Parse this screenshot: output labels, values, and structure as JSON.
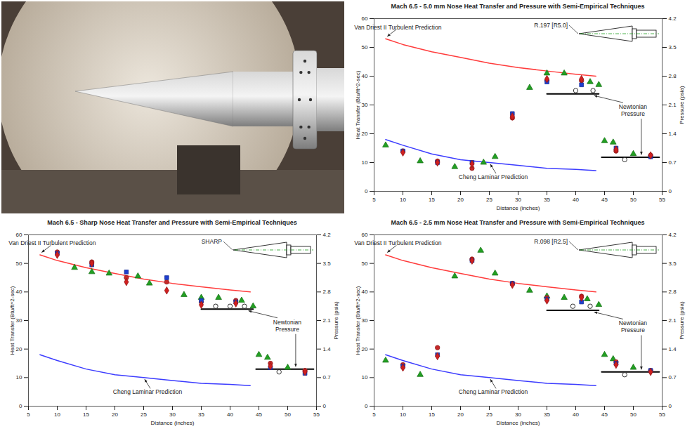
{
  "chart_data": [
    {
      "type": "scatter",
      "title": "Mach 6.5 - 5.0 mm Nose Heat Transfer and Pressure with Semi-Empirical Techniques",
      "nose_label": "R.197 [R5.0]",
      "x_label": "Distance (inches)",
      "y_label": "Heat Transfer (Btu/ft^2-sec)",
      "y2_label": "Pressure (psia)",
      "xlim": [
        5,
        55
      ],
      "xticks": [
        5,
        10,
        15,
        20,
        25,
        30,
        35,
        40,
        45,
        50,
        55
      ],
      "ylim": [
        0,
        60
      ],
      "yticks": [
        0,
        10,
        20,
        30,
        40,
        50,
        60
      ],
      "y2lim": [
        0,
        4.2
      ],
      "y2ticks": [
        0,
        0.7,
        1.4,
        2.1,
        2.8,
        3.5,
        4.2
      ],
      "series": [
        {
          "name": "Van Driest II Turbulent Prediction",
          "type": "line",
          "color": "#ff3c3c",
          "x": [
            7,
            10,
            15,
            20,
            25,
            30,
            35,
            40,
            43.5
          ],
          "values": [
            53,
            51,
            48.5,
            46.5,
            44.5,
            43,
            41.8,
            40.7,
            40
          ]
        },
        {
          "name": "Cheng Laminar Prediction",
          "type": "line",
          "color": "#3c3cff",
          "x": [
            7,
            10,
            15,
            20,
            25,
            30,
            35,
            40,
            43.5
          ],
          "values": [
            18,
            16,
            13,
            11,
            10,
            9,
            8,
            7.6,
            7.2
          ]
        },
        {
          "name": "Newtonian Pressure",
          "type": "line",
          "color": "#000000",
          "axis": "y2",
          "x": [
            35,
            44,
            44.5,
            44.5,
            54.5
          ],
          "values": [
            2.37,
            2.37,
            null,
            0.83,
            0.83
          ]
        },
        {
          "type": "scatter",
          "marker": "triangle",
          "color": "#22a022",
          "x": [
            7,
            13,
            19,
            24,
            26,
            32,
            35,
            38,
            42.5,
            44,
            45,
            46.5,
            50
          ],
          "values": [
            16,
            10.5,
            8.5,
            10,
            12,
            36,
            41,
            41,
            38,
            37,
            17.5,
            17,
            13
          ]
        },
        {
          "type": "scatter",
          "marker": "circle",
          "color": "#c62828",
          "x": [
            10,
            16,
            22,
            29,
            35,
            41,
            47,
            53
          ],
          "values": [
            14,
            10.5,
            8,
            25.5,
            38.5,
            38.5,
            14,
            12.5
          ]
        },
        {
          "type": "scatter",
          "marker": "square",
          "color": "#1f3fd0",
          "x": [
            10,
            16,
            22,
            29,
            35,
            41,
            47,
            53
          ],
          "values": [
            14,
            10,
            10,
            27,
            38,
            37,
            15,
            12
          ]
        },
        {
          "type": "scatter",
          "marker": "diamond",
          "color": "#d01f1f",
          "x": [
            10,
            16,
            22,
            29,
            35,
            41,
            47,
            53
          ],
          "values": [
            13.5,
            10,
            9.5,
            26,
            39,
            39,
            14.5,
            12.5
          ]
        },
        {
          "type": "scatter",
          "marker": "open_circle",
          "color": "#ffffff",
          "axis": "y2",
          "x": [
            40,
            43,
            48.5
          ],
          "values": [
            2.45,
            2.45,
            0.77
          ]
        }
      ]
    },
    {
      "type": "scatter",
      "title": "Mach 6.5 - Sharp Nose Heat Transfer and Pressure with Semi-Empirical Techniques",
      "nose_label": "SHARP",
      "x_label": "Distance (inches)",
      "y_label": "Heat Transfer (Btu/ft^2-sec)",
      "y2_label": "Pressure (psia)",
      "xlim": [
        5,
        55
      ],
      "xticks": [
        5,
        10,
        15,
        20,
        25,
        30,
        35,
        40,
        45,
        50,
        55
      ],
      "ylim": [
        0,
        60
      ],
      "yticks": [
        0,
        10,
        20,
        30,
        40,
        50,
        60
      ],
      "y2lim": [
        0,
        4.2
      ],
      "y2ticks": [
        0,
        0.7,
        1.4,
        2.1,
        2.8,
        3.5,
        4.2
      ],
      "series": [
        {
          "name": "Van Driest II Turbulent Prediction",
          "type": "line",
          "color": "#ff3c3c",
          "x": [
            7,
            10,
            15,
            20,
            25,
            30,
            35,
            40,
            43.5
          ],
          "values": [
            53,
            51,
            48.5,
            46.5,
            44.5,
            43,
            41.8,
            40.7,
            40
          ]
        },
        {
          "name": "Cheng Laminar Prediction",
          "type": "line",
          "color": "#3c3cff",
          "x": [
            7,
            10,
            15,
            20,
            25,
            30,
            35,
            40,
            43.5
          ],
          "values": [
            18,
            16,
            13,
            11,
            10,
            9,
            8,
            7.6,
            7.2
          ]
        },
        {
          "name": "Newtonian Pressure",
          "type": "line",
          "color": "#000000",
          "axis": "y2",
          "x": [
            35,
            44,
            44.5,
            44.5,
            54.5
          ],
          "values": [
            2.38,
            2.38,
            null,
            0.91,
            0.91
          ]
        },
        {
          "type": "scatter",
          "marker": "triangle",
          "color": "#22a022",
          "x": [
            13,
            16,
            19,
            24,
            26,
            32,
            35,
            38,
            42,
            44,
            45,
            46.5,
            50
          ],
          "values": [
            48.5,
            47,
            46.5,
            45.5,
            43,
            39,
            38,
            38,
            37,
            35,
            18,
            17,
            13.5
          ]
        },
        {
          "type": "scatter",
          "marker": "circle",
          "color": "#c62828",
          "x": [
            10,
            16,
            22,
            29,
            35,
            41,
            47,
            53
          ],
          "values": [
            54,
            50.5,
            45,
            43.5,
            36.5,
            37,
            15,
            12.5
          ]
        },
        {
          "type": "scatter",
          "marker": "square",
          "color": "#1f3fd0",
          "x": [
            10,
            16,
            22,
            29,
            35,
            41,
            47,
            53
          ],
          "values": [
            53.5,
            49.5,
            47,
            45,
            37,
            36.5,
            13.5,
            11.5
          ]
        },
        {
          "type": "scatter",
          "marker": "diamond",
          "color": "#d01f1f",
          "x": [
            10,
            16,
            22,
            29,
            35,
            41,
            47,
            53
          ],
          "values": [
            53,
            50,
            43.5,
            40.5,
            35.5,
            36,
            14,
            12
          ]
        },
        {
          "type": "scatter",
          "marker": "open_circle",
          "color": "#ffffff",
          "axis": "y2",
          "x": [
            37.5,
            40,
            42.5,
            48.5
          ],
          "values": [
            2.45,
            2.45,
            2.45,
            0.84
          ]
        }
      ]
    },
    {
      "type": "scatter",
      "title": "Mach 6.5 - 2.5 mm Nose Heat Transfer and Pressure with Semi-Empirical Techniques",
      "nose_label": "R.098 [R2.5]",
      "x_label": "Distance (inches)",
      "y_label": "Heat Transfer (Btu/ft^2-sec)",
      "y2_label": "Pressure (psia)",
      "xlim": [
        5,
        55
      ],
      "xticks": [
        5,
        10,
        15,
        20,
        25,
        30,
        35,
        40,
        45,
        50,
        55
      ],
      "ylim": [
        0,
        60
      ],
      "yticks": [
        0,
        10,
        20,
        30,
        40,
        50,
        60
      ],
      "y2lim": [
        0,
        4.2
      ],
      "y2ticks": [
        0,
        0.7,
        1.4,
        2.1,
        2.8,
        3.5,
        4.2
      ],
      "series": [
        {
          "name": "Van Driest II Turbulent Prediction",
          "type": "line",
          "color": "#ff3c3c",
          "x": [
            7,
            10,
            15,
            20,
            25,
            30,
            35,
            40,
            43.5
          ],
          "values": [
            53,
            51,
            48.5,
            46.5,
            44.5,
            43,
            41.8,
            40.7,
            40
          ]
        },
        {
          "name": "Cheng Laminar Prediction",
          "type": "line",
          "color": "#3c3cff",
          "x": [
            7,
            10,
            15,
            20,
            25,
            30,
            35,
            40,
            43.5
          ],
          "values": [
            18,
            16,
            13,
            11,
            10,
            9,
            8,
            7.6,
            7.2
          ]
        },
        {
          "name": "Newtonian Pressure",
          "type": "line",
          "color": "#000000",
          "axis": "y2",
          "x": [
            35,
            44,
            44.5,
            44.5,
            54.5
          ],
          "values": [
            2.35,
            2.35,
            null,
            0.84,
            0.84
          ]
        },
        {
          "type": "scatter",
          "marker": "triangle",
          "color": "#22a022",
          "x": [
            7,
            13,
            19,
            23.5,
            26,
            32,
            35,
            38,
            42,
            44,
            45,
            46.5,
            50
          ],
          "values": [
            16,
            11,
            45.5,
            54.5,
            46.5,
            40.5,
            38.5,
            38,
            37.5,
            35.5,
            18,
            16.5,
            13.5
          ]
        },
        {
          "type": "scatter",
          "marker": "circle",
          "color": "#c62828",
          "x": [
            10,
            16,
            22,
            29,
            35,
            41,
            47,
            53
          ],
          "values": [
            14.5,
            20.5,
            51.5,
            43,
            38,
            38.5,
            15.5,
            12.5
          ]
        },
        {
          "type": "scatter",
          "marker": "square",
          "color": "#1f3fd0",
          "x": [
            10,
            16,
            22,
            29,
            35,
            41,
            47,
            53
          ],
          "values": [
            14,
            18,
            51,
            43,
            37.5,
            36.5,
            15,
            12.5
          ]
        },
        {
          "type": "scatter",
          "marker": "diamond",
          "color": "#d01f1f",
          "x": [
            10,
            16,
            22,
            29,
            35,
            41,
            47,
            53
          ],
          "values": [
            13.5,
            17.5,
            51,
            42.5,
            37,
            38,
            14.5,
            12
          ]
        },
        {
          "type": "scatter",
          "marker": "open_circle",
          "color": "#ffffff",
          "axis": "y2",
          "x": [
            39.5,
            42.5,
            48.5
          ],
          "values": [
            2.45,
            2.45,
            0.77
          ]
        }
      ]
    }
  ]
}
